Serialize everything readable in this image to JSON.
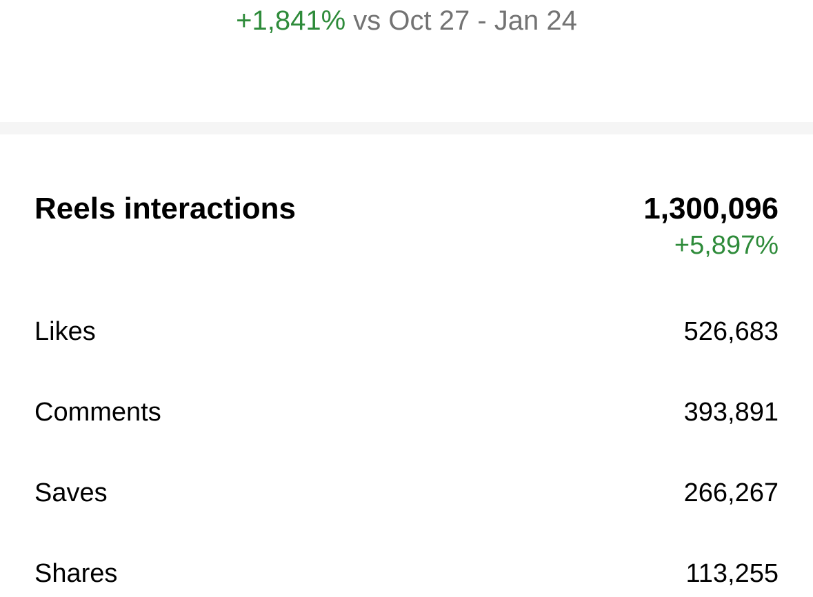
{
  "header": {
    "change": "+1,841%",
    "comparison": "vs Oct 27 - Jan 24"
  },
  "section": {
    "title": "Reels interactions",
    "total": "1,300,096",
    "total_change": "+5,897%",
    "rows": [
      [
        "Likes",
        "526,683"
      ],
      [
        "Comments",
        "393,891"
      ],
      [
        "Saves",
        "266,267"
      ],
      [
        "Shares",
        "113,255"
      ]
    ]
  }
}
